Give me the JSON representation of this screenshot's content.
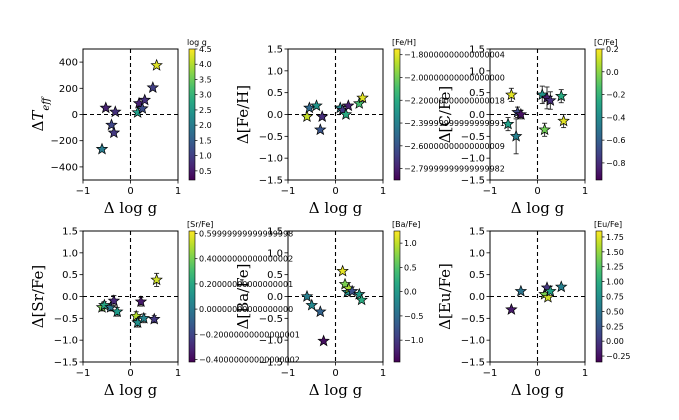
{
  "chart_data": [
    {
      "type": "scatter",
      "xlabel": "Δ log g",
      "ylabel": "ΔT_eff",
      "ylabel_main": "ΔT",
      "ylabel_sub": "eff",
      "xlim": [
        -1,
        1
      ],
      "ylim": [
        -500,
        500
      ],
      "xticks": [
        -1,
        0,
        1
      ],
      "yticks": [
        -400,
        -200,
        0,
        200,
        400
      ],
      "colorbar": {
        "label": "log g",
        "range": [
          0.2,
          4.5
        ],
        "ticks": [
          0.5,
          1.0,
          1.5,
          2.0,
          2.5,
          3.0,
          3.5,
          4.0,
          4.5
        ]
      },
      "points": [
        {
          "x": -0.6,
          "y": -265,
          "c": 2.0,
          "err": 0
        },
        {
          "x": -0.52,
          "y": 50,
          "c": 0.6,
          "err": 0
        },
        {
          "x": -0.4,
          "y": -80,
          "c": 1.1,
          "err": 0
        },
        {
          "x": -0.35,
          "y": -140,
          "c": 0.9,
          "err": 0
        },
        {
          "x": -0.32,
          "y": 20,
          "c": 0.8,
          "err": 0
        },
        {
          "x": 0.15,
          "y": 15,
          "c": 2.6,
          "err": 0
        },
        {
          "x": 0.18,
          "y": 85,
          "c": 0.6,
          "err": 0
        },
        {
          "x": 0.25,
          "y": 45,
          "c": 1.2,
          "err": 0
        },
        {
          "x": 0.3,
          "y": 110,
          "c": 0.8,
          "err": 0
        },
        {
          "x": 0.47,
          "y": 205,
          "c": 1.0,
          "err": 0
        },
        {
          "x": 0.55,
          "y": 375,
          "c": 4.3,
          "err": 0
        }
      ]
    },
    {
      "type": "scatter",
      "xlabel": "Δ log g",
      "ylabel": "Δ[Fe/H]",
      "xlim": [
        -1,
        1
      ],
      "ylim": [
        -1.5,
        1.5
      ],
      "xticks": [
        -1,
        0,
        1
      ],
      "yticks": [
        -1.5,
        -1.0,
        -0.5,
        0.0,
        0.5,
        1.0,
        1.5
      ],
      "colorbar": {
        "label": "[Fe/H]",
        "range": [
          -2.9,
          -1.75
        ],
        "ticks": [
          -1.8,
          -2.0,
          -2.2,
          -2.4,
          -2.6,
          -2.8
        ]
      },
      "points": [
        {
          "x": -0.6,
          "y": -0.05,
          "c": -1.85,
          "err": 0
        },
        {
          "x": -0.55,
          "y": 0.15,
          "c": -2.5,
          "err": 0
        },
        {
          "x": -0.4,
          "y": 0.2,
          "c": -2.3,
          "err": 0
        },
        {
          "x": -0.32,
          "y": -0.35,
          "c": -2.6,
          "err": 0
        },
        {
          "x": -0.28,
          "y": -0.05,
          "c": -2.75,
          "err": 0
        },
        {
          "x": 0.1,
          "y": 0.15,
          "c": -2.35,
          "err": 0
        },
        {
          "x": 0.15,
          "y": 0.1,
          "c": -2.7,
          "err": 0
        },
        {
          "x": 0.22,
          "y": 0.0,
          "c": -2.2,
          "err": 0
        },
        {
          "x": 0.27,
          "y": 0.2,
          "c": -2.8,
          "err": 0
        },
        {
          "x": 0.5,
          "y": 0.25,
          "c": -2.1,
          "err": 0
        },
        {
          "x": 0.57,
          "y": 0.38,
          "c": -1.8,
          "err": 0
        }
      ]
    },
    {
      "type": "scatter",
      "xlabel": "Δ log g",
      "ylabel": "Δ[C/Fe]",
      "xlim": [
        -1,
        1
      ],
      "ylim": [
        -1.5,
        1.5
      ],
      "xticks": [
        -1,
        0,
        1
      ],
      "yticks": [
        -1.5,
        -1.0,
        -0.5,
        0.0,
        0.5,
        1.0,
        1.5
      ],
      "colorbar": {
        "label": "[C/Fe]",
        "range": [
          -0.95,
          0.2
        ],
        "ticks": [
          0.2,
          0.0,
          -0.2,
          -0.4,
          -0.6,
          -0.8
        ]
      },
      "points": [
        {
          "x": -0.62,
          "y": -0.22,
          "c": -0.3,
          "err": 0.15
        },
        {
          "x": -0.55,
          "y": 0.45,
          "c": 0.15,
          "err": 0.15
        },
        {
          "x": -0.45,
          "y": -0.5,
          "c": -0.45,
          "err": 0.4
        },
        {
          "x": -0.42,
          "y": 0.05,
          "c": -0.7,
          "err": 0.12
        },
        {
          "x": -0.35,
          "y": 0.0,
          "c": -0.9,
          "err": 0.1
        },
        {
          "x": 0.1,
          "y": 0.45,
          "c": -0.35,
          "err": 0.2
        },
        {
          "x": 0.15,
          "y": -0.35,
          "c": -0.05,
          "err": 0.15
        },
        {
          "x": 0.2,
          "y": 0.38,
          "c": -0.85,
          "err": 0.25
        },
        {
          "x": 0.27,
          "y": 0.32,
          "c": -0.8,
          "err": 0.2
        },
        {
          "x": 0.5,
          "y": 0.42,
          "c": -0.25,
          "err": 0.15
        },
        {
          "x": 0.55,
          "y": -0.15,
          "c": 0.15,
          "err": 0.15
        }
      ]
    },
    {
      "type": "scatter",
      "xlabel": "Δ log g",
      "ylabel": "Δ[Sr/Fe]",
      "xlim": [
        -1,
        1
      ],
      "ylim": [
        -1.5,
        1.5
      ],
      "xticks": [
        -1,
        0,
        1
      ],
      "yticks": [
        -1.5,
        -1.0,
        -0.5,
        0.0,
        0.5,
        1.0,
        1.5
      ],
      "colorbar": {
        "label": "[Sr/Fe]",
        "range": [
          -0.42,
          0.62
        ],
        "ticks": [
          0.6,
          0.4,
          0.2,
          0.0,
          -0.2,
          -0.4
        ]
      },
      "points": [
        {
          "x": -0.6,
          "y": -0.25,
          "c": 0.4,
          "err": 0.08
        },
        {
          "x": -0.55,
          "y": -0.2,
          "c": 0.2,
          "err": 0.08
        },
        {
          "x": -0.42,
          "y": -0.25,
          "c": 0.0,
          "err": 0.08
        },
        {
          "x": -0.35,
          "y": -0.1,
          "c": -0.3,
          "err": 0.12
        },
        {
          "x": -0.28,
          "y": -0.35,
          "c": 0.15,
          "err": 0.1
        },
        {
          "x": 0.12,
          "y": -0.45,
          "c": 0.5,
          "err": 0.1
        },
        {
          "x": 0.15,
          "y": -0.6,
          "c": 0.1,
          "err": 0.1
        },
        {
          "x": 0.22,
          "y": -0.12,
          "c": -0.35,
          "err": 0.1
        },
        {
          "x": 0.28,
          "y": -0.5,
          "c": 0.05,
          "err": 0.1
        },
        {
          "x": 0.5,
          "y": -0.52,
          "c": -0.25,
          "err": 0.08
        },
        {
          "x": 0.55,
          "y": 0.38,
          "c": 0.55,
          "err": 0.15
        }
      ]
    },
    {
      "type": "scatter",
      "xlabel": "Δ log g",
      "ylabel": "Δ[Ba/Fe]",
      "xlim": [
        -1,
        1
      ],
      "ylim": [
        -1.5,
        1.5
      ],
      "xticks": [
        -1,
        0,
        1
      ],
      "yticks": [
        -1.5,
        -1.0,
        -0.5,
        0.0,
        0.5,
        1.0,
        1.5
      ],
      "colorbar": {
        "label": "[Ba/Fe]",
        "range": [
          -1.45,
          1.25
        ],
        "ticks": [
          1.0,
          0.5,
          0.0,
          -0.5,
          -1.0
        ]
      },
      "points": [
        {
          "x": -0.6,
          "y": 0.0,
          "c": -0.3,
          "err": 0
        },
        {
          "x": -0.5,
          "y": -0.2,
          "c": -0.2,
          "err": 0
        },
        {
          "x": -0.32,
          "y": -0.35,
          "c": -0.6,
          "err": 0
        },
        {
          "x": -0.25,
          "y": -1.02,
          "c": -1.35,
          "err": 0
        },
        {
          "x": 0.15,
          "y": 0.58,
          "c": 1.15,
          "err": 0
        },
        {
          "x": 0.2,
          "y": 0.28,
          "c": 0.7,
          "err": 0
        },
        {
          "x": 0.25,
          "y": 0.1,
          "c": -0.1,
          "err": 0
        },
        {
          "x": 0.28,
          "y": 0.18,
          "c": 0.9,
          "err": 0
        },
        {
          "x": 0.35,
          "y": 0.12,
          "c": -0.8,
          "err": 0
        },
        {
          "x": 0.5,
          "y": 0.05,
          "c": 0.0,
          "err": 0
        },
        {
          "x": 0.55,
          "y": -0.08,
          "c": 0.2,
          "err": 0
        }
      ]
    },
    {
      "type": "scatter",
      "xlabel": "Δ log g",
      "ylabel": "Δ[Eu/Fe]",
      "xlim": [
        -1,
        1
      ],
      "ylim": [
        -1.5,
        1.5
      ],
      "xticks": [
        -1,
        0,
        1
      ],
      "yticks": [
        -1.5,
        -1.0,
        -0.5,
        0.0,
        0.5,
        1.0,
        1.5
      ],
      "colorbar": {
        "label": "[Eu/Fe]",
        "range": [
          -0.35,
          1.85
        ],
        "ticks": [
          1.75,
          1.5,
          1.25,
          1.0,
          0.75,
          0.5,
          0.25,
          0.0,
          -0.25
        ]
      },
      "points": [
        {
          "x": -0.55,
          "y": -0.3,
          "c": -0.2,
          "err": 0
        },
        {
          "x": -0.35,
          "y": 0.12,
          "c": 0.5,
          "err": 0
        },
        {
          "x": 0.15,
          "y": 0.05,
          "c": 1.4,
          "err": 0
        },
        {
          "x": 0.2,
          "y": 0.2,
          "c": 0.0,
          "err": 0
        },
        {
          "x": 0.22,
          "y": -0.02,
          "c": 1.7,
          "err": 0
        },
        {
          "x": 0.27,
          "y": 0.12,
          "c": 0.9,
          "err": 0
        },
        {
          "x": 0.5,
          "y": 0.22,
          "c": 0.6,
          "err": 0
        }
      ]
    }
  ]
}
